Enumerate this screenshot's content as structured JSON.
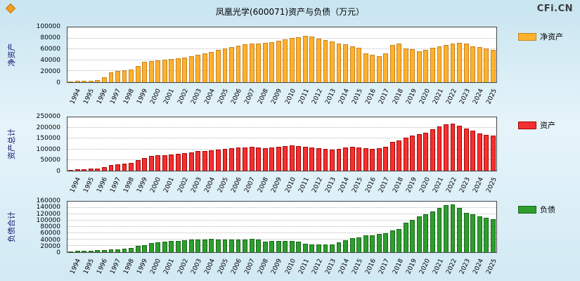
{
  "header": {
    "title": "凤凰光学(600071)资产与负债（万元）",
    "watermark": "CFi.CN"
  },
  "years": [
    1994,
    1995,
    1996,
    1997,
    1998,
    1999,
    2000,
    2001,
    2002,
    2003,
    2004,
    2005,
    2006,
    2007,
    2008,
    2009,
    2010,
    2011,
    2012,
    2013,
    2014,
    2015,
    2016,
    2017,
    2018,
    2019,
    2020,
    2021,
    2022,
    2023,
    2024,
    2025
  ],
  "values_per_year": 2,
  "unit": "万元",
  "chart_data": [
    {
      "type": "bar",
      "title": "净资产",
      "ylabel": "净资产",
      "legend": "净资产",
      "legend_position": "right",
      "grid": true,
      "bar_color": "#FFB12E",
      "bar_border": "#C8831A",
      "ylim": [
        0,
        100000
      ],
      "y_ticks": [
        0,
        20000,
        40000,
        60000,
        80000,
        100000
      ],
      "values": [
        1500,
        2000,
        2500,
        3200,
        4000,
        9000,
        18000,
        21000,
        21500,
        22500,
        30000,
        37000,
        38500,
        40000,
        41000,
        42500,
        43500,
        45500,
        47500,
        50000,
        52500,
        55500,
        58500,
        62000,
        64500,
        67000,
        69000,
        71000,
        70000,
        72000,
        73500,
        76000,
        78000,
        80500,
        82000,
        84000,
        83000,
        80000,
        77000,
        74000,
        71000,
        69000,
        66000,
        63000,
        52000,
        49500,
        48000,
        52000,
        68000,
        70500,
        62000,
        60000,
        57000,
        59000,
        63000,
        66000,
        68000,
        70000,
        72000,
        70500,
        66000,
        63500,
        61000,
        58500
      ]
    },
    {
      "type": "bar",
      "title": "资产总计",
      "ylabel": "资产总计",
      "legend": "资产",
      "legend_position": "right",
      "grid": true,
      "bar_color": "#F53030",
      "bar_border": "#A80000",
      "ylim": [
        0,
        250000
      ],
      "y_ticks": [
        0,
        50000,
        100000,
        150000,
        200000,
        250000
      ],
      "values": [
        4000,
        5500,
        6500,
        8500,
        10000,
        15000,
        28000,
        31000,
        33000,
        36000,
        50000,
        60000,
        68000,
        72000,
        74000,
        77000,
        79000,
        83000,
        87000,
        91000,
        93000,
        97000,
        99000,
        103000,
        105000,
        108000,
        110000,
        113000,
        109000,
        106000,
        108000,
        111000,
        114000,
        117000,
        115000,
        111000,
        108000,
        104000,
        101000,
        99000,
        102000,
        107000,
        111000,
        109000,
        105000,
        103000,
        106000,
        112000,
        136000,
        143000,
        156000,
        163000,
        171000,
        179000,
        193000,
        206000,
        216000,
        222000,
        211000,
        196000,
        186000,
        176000,
        169000,
        163000
      ]
    },
    {
      "type": "bar",
      "title": "负债合计",
      "ylabel": "负债合计",
      "legend": "负债",
      "legend_position": "right",
      "grid": true,
      "bar_color": "#2E9E2E",
      "bar_border": "#156815",
      "ylim": [
        0,
        160000
      ],
      "y_ticks": [
        0,
        20000,
        40000,
        60000,
        80000,
        100000,
        120000,
        140000,
        160000
      ],
      "values": [
        2500,
        3500,
        4000,
        5300,
        6000,
        6000,
        10000,
        10000,
        11500,
        13500,
        20000,
        23000,
        29500,
        32000,
        33000,
        34500,
        35500,
        37500,
        39500,
        41000,
        40500,
        41500,
        40500,
        41000,
        40500,
        41000,
        41000,
        42000,
        39000,
        34000,
        34500,
        35000,
        36000,
        36500,
        33000,
        27000,
        25000,
        24000,
        24000,
        25000,
        31000,
        38000,
        45000,
        46000,
        53000,
        53500,
        58000,
        60000,
        68000,
        72500,
        94000,
        103000,
        114000,
        120000,
        130000,
        140000,
        148000,
        152000,
        139000,
        125500,
        120000,
        112500,
        108000,
        104500
      ]
    }
  ]
}
